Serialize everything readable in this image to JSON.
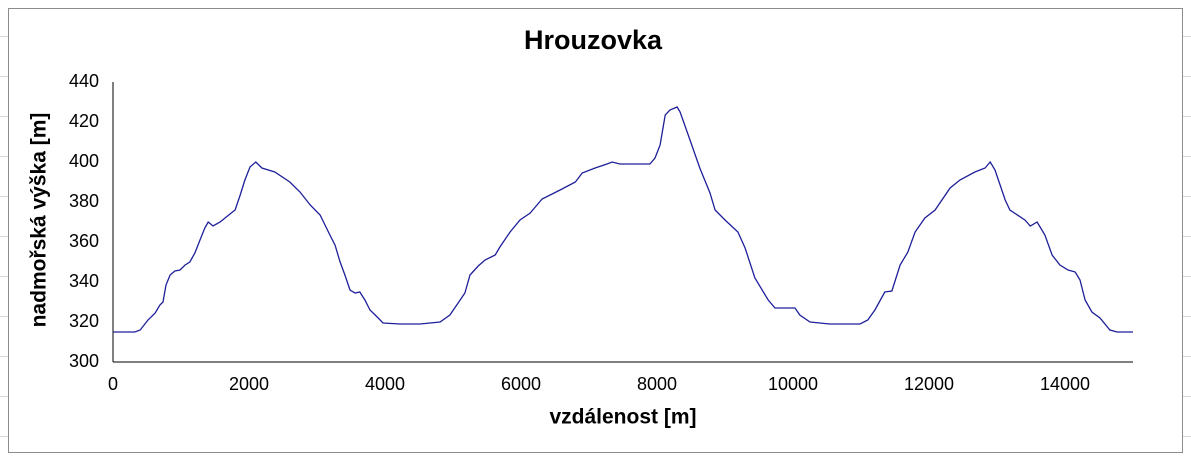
{
  "chart_data": {
    "type": "line",
    "title": "Hrouzovka",
    "x_label": "vzdálenost [m]",
    "y_label": "nadmořská výška  [m]",
    "x": [
      0,
      320,
      400,
      515,
      620,
      690,
      735,
      780,
      840,
      910,
      985,
      1060,
      1130,
      1205,
      1280,
      1350,
      1400,
      1470,
      1575,
      1720,
      1795,
      1870,
      1940,
      2015,
      2100,
      2190,
      2380,
      2600,
      2750,
      2900,
      3045,
      3190,
      3265,
      3340,
      3410,
      3485,
      3560,
      3630,
      3705,
      3780,
      3900,
      3970,
      4220,
      4515,
      4810,
      4955,
      5075,
      5175,
      5250,
      5370,
      5470,
      5620,
      5690,
      5840,
      5985,
      6135,
      6235,
      6310,
      6575,
      6800,
      6900,
      7090,
      7265,
      7340,
      7455,
      7895,
      7970,
      8045,
      8120,
      8190,
      8295,
      8340,
      8485,
      8630,
      8780,
      8855,
      9000,
      9190,
      9295,
      9440,
      9635,
      9735,
      10030,
      10100,
      10250,
      10540,
      10985,
      11100,
      11205,
      11350,
      11455,
      11575,
      11690,
      11795,
      11940,
      12090,
      12310,
      12455,
      12675,
      12825,
      12900,
      12970,
      13045,
      13120,
      13190,
      13410,
      13490,
      13590,
      13705,
      13810,
      13925,
      14045,
      14150,
      14220,
      14295,
      14395,
      14515,
      14660,
      14765,
      15000
    ],
    "series": [
      {
        "color": "#1f1f9a",
        "values": [
          315,
          315,
          316,
          321,
          324.5,
          328.5,
          330,
          338.5,
          343.5,
          345.5,
          346,
          348.5,
          350,
          354.5,
          361,
          367,
          370,
          368,
          370,
          374,
          376,
          383.5,
          391,
          397.5,
          400,
          397,
          395,
          390,
          385,
          378.5,
          373.5,
          363.5,
          358.5,
          350,
          343.5,
          336,
          334.5,
          335,
          331,
          326,
          322,
          319.5,
          319,
          319,
          320,
          323.5,
          329.5,
          334.5,
          343.5,
          348,
          351,
          353.5,
          357.5,
          365,
          371,
          374.5,
          378.5,
          381.5,
          386,
          390,
          394.5,
          397,
          399,
          400,
          399,
          399,
          402,
          408.5,
          423.5,
          426,
          427.5,
          425,
          411,
          397,
          384.5,
          376,
          371,
          365,
          357,
          342,
          331,
          327,
          327,
          323.5,
          320,
          319,
          319,
          321,
          326,
          335,
          335.5,
          348.5,
          355,
          365,
          372,
          376,
          387,
          391,
          395,
          397,
          400,
          396,
          388.5,
          381,
          376,
          371,
          368,
          370,
          363.5,
          353.5,
          348.5,
          346,
          345,
          341,
          331,
          325,
          322,
          316,
          315,
          315
        ]
      }
    ],
    "xlim": [
      0,
      15000
    ],
    "ylim": [
      300,
      440
    ],
    "xticks": [
      0,
      2000,
      4000,
      6000,
      8000,
      10000,
      12000,
      14000
    ],
    "yticks": [
      300,
      320,
      340,
      360,
      380,
      400,
      420,
      440
    ],
    "grid": false
  }
}
